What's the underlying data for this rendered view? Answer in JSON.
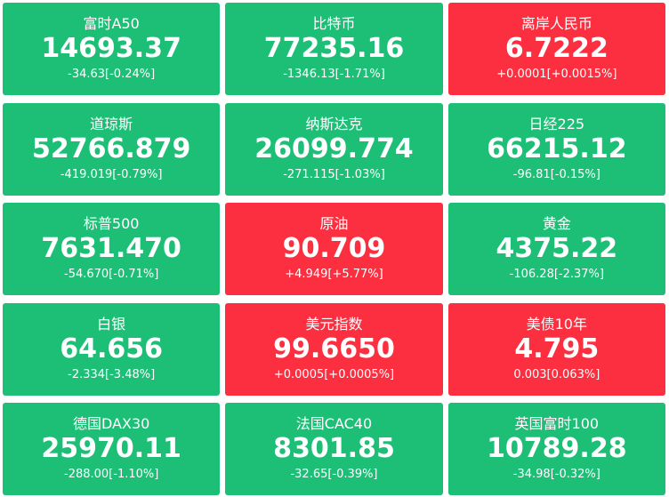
{
  "tiles": [
    {
      "name": "富时A50",
      "value": "14693.37",
      "change": "-34.63[-0.24%]",
      "color": "#1dbf77"
    },
    {
      "name": "比特币",
      "value": "77235.16",
      "change": "-1346.13[-1.71%]",
      "color": "#1dbf77"
    },
    {
      "name": "离岸人民币",
      "value": "6.7222",
      "change": "+0.0001[+0.0015%]",
      "color": "#fc2f40"
    },
    {
      "name": "道琼斯",
      "value": "52766.879",
      "change": "-419.019[-0.79%]",
      "color": "#1dbf77"
    },
    {
      "name": "纳斯达克",
      "value": "26099.774",
      "change": "-271.115[-1.03%]",
      "color": "#1dbf77"
    },
    {
      "name": "日经225",
      "value": "66215.12",
      "change": "-96.81[-0.15%]",
      "color": "#1dbf77"
    },
    {
      "name": "标普500",
      "value": "7631.470",
      "change": "-54.670[-0.71%]",
      "color": "#1dbf77"
    },
    {
      "name": "原油",
      "value": "90.709",
      "change": "+4.949[+5.77%]",
      "color": "#fc2f40"
    },
    {
      "name": "黄金",
      "value": "4375.22",
      "change": "-106.28[-2.37%]",
      "color": "#1dbf77"
    },
    {
      "name": "白银",
      "value": "64.656",
      "change": "-2.334[-3.48%]",
      "color": "#1dbf77"
    },
    {
      "name": "美元指数",
      "value": "99.6650",
      "change": "+0.0005[+0.0005%]",
      "color": "#fc2f40"
    },
    {
      "name": "美债10年",
      "value": "4.795",
      "change": "0.003[0.063%]",
      "color": "#fc2f40"
    },
    {
      "name": "德国DAX30",
      "value": "25970.11",
      "change": "-288.00[-1.10%]",
      "color": "#1dbf77"
    },
    {
      "name": "法国CAC40",
      "value": "8301.85",
      "change": "-32.65[-0.39%]",
      "color": "#1dbf77"
    },
    {
      "name": "英国富时100",
      "value": "10789.28",
      "change": "-34.98[-0.32%]",
      "color": "#1dbf77"
    }
  ]
}
